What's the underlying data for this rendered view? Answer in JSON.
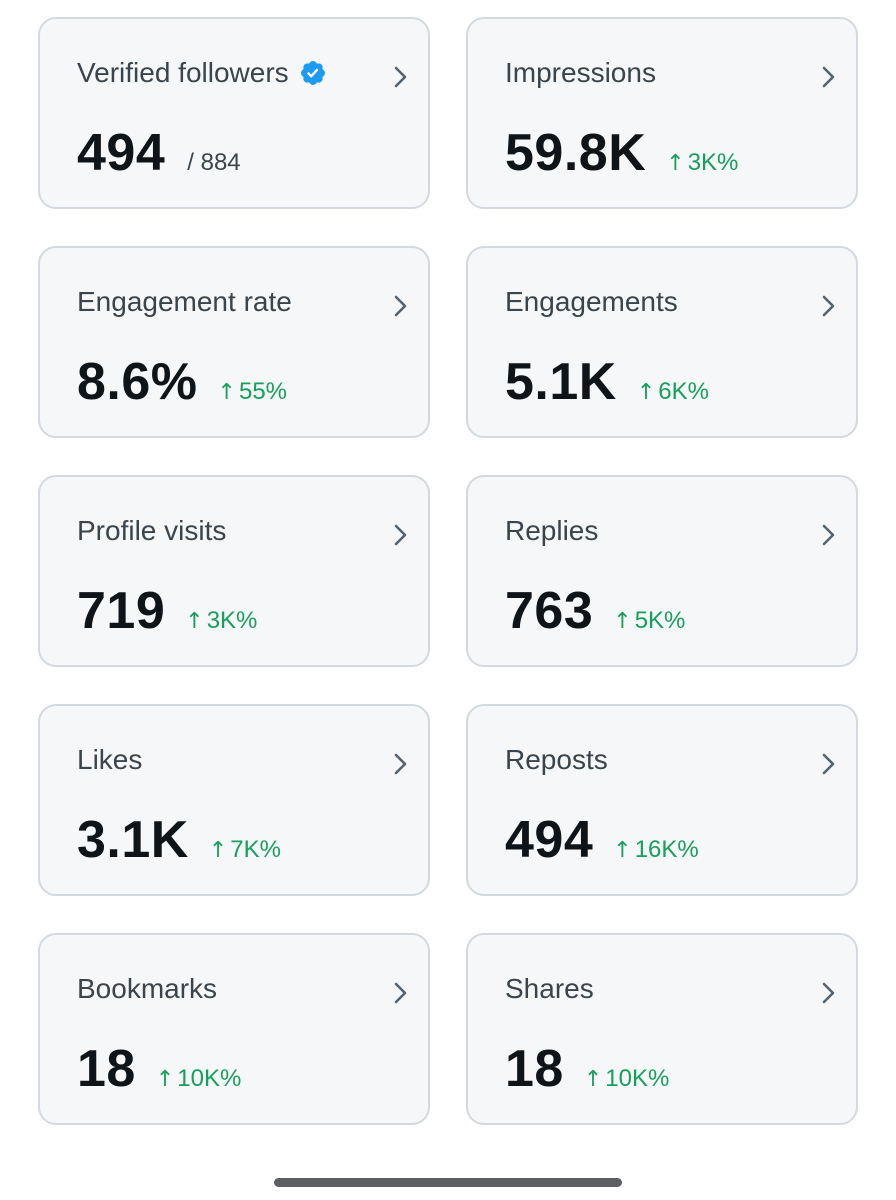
{
  "colors": {
    "card_background": "#f6f7f8",
    "card_border": "#d3d9de",
    "value_text": "#0f1419",
    "label_text": "#3a444d",
    "positive_change": "#179f5c",
    "verified_badge": "#1d9bf0"
  },
  "icons": {
    "verified": "verified-badge-icon",
    "chevron": "chevron-right-icon",
    "delta_arrow": "arrow-up-icon"
  },
  "delta_arrow": "↑",
  "cards": [
    {
      "label": "Verified followers",
      "value": "494",
      "sub": "/ 884",
      "verified": true
    },
    {
      "label": "Impressions",
      "value": "59.8K",
      "delta": "3K%"
    },
    {
      "label": "Engagement rate",
      "value": "8.6%",
      "delta": "55%"
    },
    {
      "label": "Engagements",
      "value": "5.1K",
      "delta": "6K%"
    },
    {
      "label": "Profile visits",
      "value": "719",
      "delta": "3K%"
    },
    {
      "label": "Replies",
      "value": "763",
      "delta": "5K%"
    },
    {
      "label": "Likes",
      "value": "3.1K",
      "delta": "7K%"
    },
    {
      "label": "Reposts",
      "value": "494",
      "delta": "16K%"
    },
    {
      "label": "Bookmarks",
      "value": "18",
      "delta": "10K%"
    },
    {
      "label": "Shares",
      "value": "18",
      "delta": "10K%"
    }
  ]
}
